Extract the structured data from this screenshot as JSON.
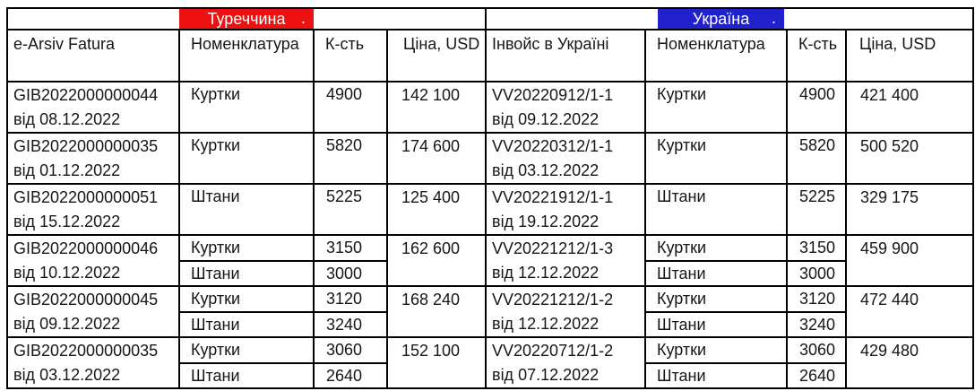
{
  "page": {
    "background": "#ffffff"
  },
  "banners": {
    "turkey": {
      "label": "Туреччина",
      "dot": ".",
      "color": "#ee1111",
      "text_color": "#ffffff"
    },
    "ukraine": {
      "label": "Україна",
      "dot": ".",
      "color": "#2121ce",
      "text_color": "#ffffff"
    }
  },
  "headers": {
    "turkey_invoice": "e-Arsiv Fatura",
    "turkey_nomenclature": "Номенклатура",
    "turkey_qty": "К-сть",
    "turkey_price": "Ціна, USD",
    "ukraine_invoice": "Інвойс в Україні",
    "ukraine_nomenclature": "Номенклатура",
    "ukraine_qty": "К-сть",
    "ukraine_price": "Ціна, USD"
  },
  "rows": [
    {
      "turkey_invoice": "GIB2022000000044",
      "turkey_date": "від 08.12.2022",
      "turkey_price": "142 100",
      "ukraine_invoice": "VV20220912/1-1",
      "ukraine_date": "від 09.12.2022",
      "ukraine_price": "421 400",
      "items": [
        {
          "turkey_name": "Куртки",
          "turkey_qty": "4900",
          "ukraine_name": "Куртки",
          "ukraine_qty": "4900"
        }
      ]
    },
    {
      "turkey_invoice": "GIB2022000000035",
      "turkey_date": "від 01.12.2022",
      "turkey_price": "174 600",
      "ukraine_invoice": "VV20220312/1-1",
      "ukraine_date": "від 03.12.2022",
      "ukraine_price": "500 520",
      "items": [
        {
          "turkey_name": "Куртки",
          "turkey_qty": "5820",
          "ukraine_name": "Куртки",
          "ukraine_qty": "5820"
        }
      ]
    },
    {
      "turkey_invoice": "GIB2022000000051",
      "turkey_date": "від 15.12.2022",
      "turkey_price": "125 400",
      "ukraine_invoice": "VV20221912/1-1",
      "ukraine_date": "від 19.12.2022",
      "ukraine_price": "329 175",
      "items": [
        {
          "turkey_name": "Штани",
          "turkey_qty": "5225",
          "ukraine_name": "Штани",
          "ukraine_qty": "5225"
        }
      ]
    },
    {
      "turkey_invoice": "GIB2022000000046",
      "turkey_date": "від 10.12.2022",
      "turkey_price": "162 600",
      "ukraine_invoice": "VV20221212/1-3",
      "ukraine_date": "від 12.12.2022",
      "ukraine_price": "459 900",
      "items": [
        {
          "turkey_name": "Куртки",
          "turkey_qty": "3150",
          "ukraine_name": "Куртки",
          "ukraine_qty": "3150"
        },
        {
          "turkey_name": "Штани",
          "turkey_qty": "3000",
          "ukraine_name": "Штани",
          "ukraine_qty": "3000"
        }
      ]
    },
    {
      "turkey_invoice": "GIB2022000000045",
      "turkey_date": "від 09.12.2022",
      "turkey_price": "168 240",
      "ukraine_invoice": "VV20221212/1-2",
      "ukraine_date": "від 12.12.2022",
      "ukraine_price": "472 440",
      "items": [
        {
          "turkey_name": "Куртки",
          "turkey_qty": "3120",
          "ukraine_name": "Куртки",
          "ukraine_qty": "3120"
        },
        {
          "turkey_name": "Штани",
          "turkey_qty": "3240",
          "ukraine_name": "Штани",
          "ukraine_qty": "3240"
        }
      ]
    },
    {
      "turkey_invoice": "GIB2022000000035",
      "turkey_date": "від 03.12.2022",
      "turkey_price": "152 100",
      "ukraine_invoice": "VV20220712/1-2",
      "ukraine_date": "від 07.12.2022",
      "ukraine_price": "429 480",
      "items": [
        {
          "turkey_name": "Куртки",
          "turkey_qty": "3060",
          "ukraine_name": "Куртки",
          "ukraine_qty": "3060"
        },
        {
          "turkey_name": "Штани",
          "turkey_qty": "2640",
          "ukraine_name": "Штани",
          "ukraine_qty": "2640"
        }
      ]
    }
  ]
}
